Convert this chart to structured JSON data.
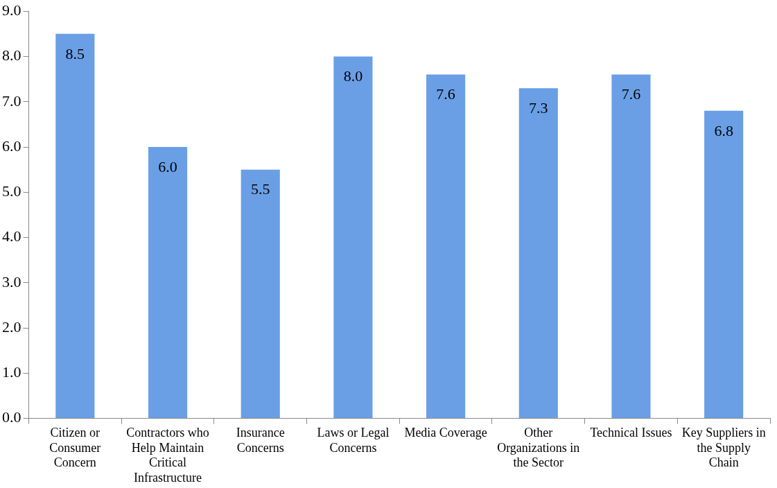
{
  "chart_data": {
    "type": "bar",
    "categories": [
      "Citizen or Consumer Concern",
      "Contractors who Help Maintain Critical Infrastructure",
      "Insurance Concerns",
      "Laws or Legal Concerns",
      "Media Coverage",
      "Other Organizations in the Sector",
      "Technical Issues",
      "Key Suppliers in the Supply Chain"
    ],
    "values": [
      8.5,
      6.0,
      5.5,
      8.0,
      7.6,
      7.3,
      7.6,
      6.8
    ],
    "value_labels": [
      "8.5",
      "6.0",
      "5.5",
      "8.0",
      "7.6",
      "7.3",
      "7.6",
      "6.8"
    ],
    "color": "#6a9fe6",
    "ylim": [
      0,
      9
    ],
    "yticks": [
      {
        "value": 0,
        "label": "0.0"
      },
      {
        "value": 1,
        "label": "1.0"
      },
      {
        "value": 2,
        "label": "2.0"
      },
      {
        "value": 3,
        "label": "3.0"
      },
      {
        "value": 4,
        "label": "4.0"
      },
      {
        "value": 5,
        "label": "5.0"
      },
      {
        "value": 6,
        "label": "6.0"
      },
      {
        "value": 7,
        "label": "7.0"
      },
      {
        "value": 8,
        "label": "8.0"
      },
      {
        "value": 9,
        "label": "9.0"
      }
    ],
    "grid": false,
    "legend": false
  }
}
